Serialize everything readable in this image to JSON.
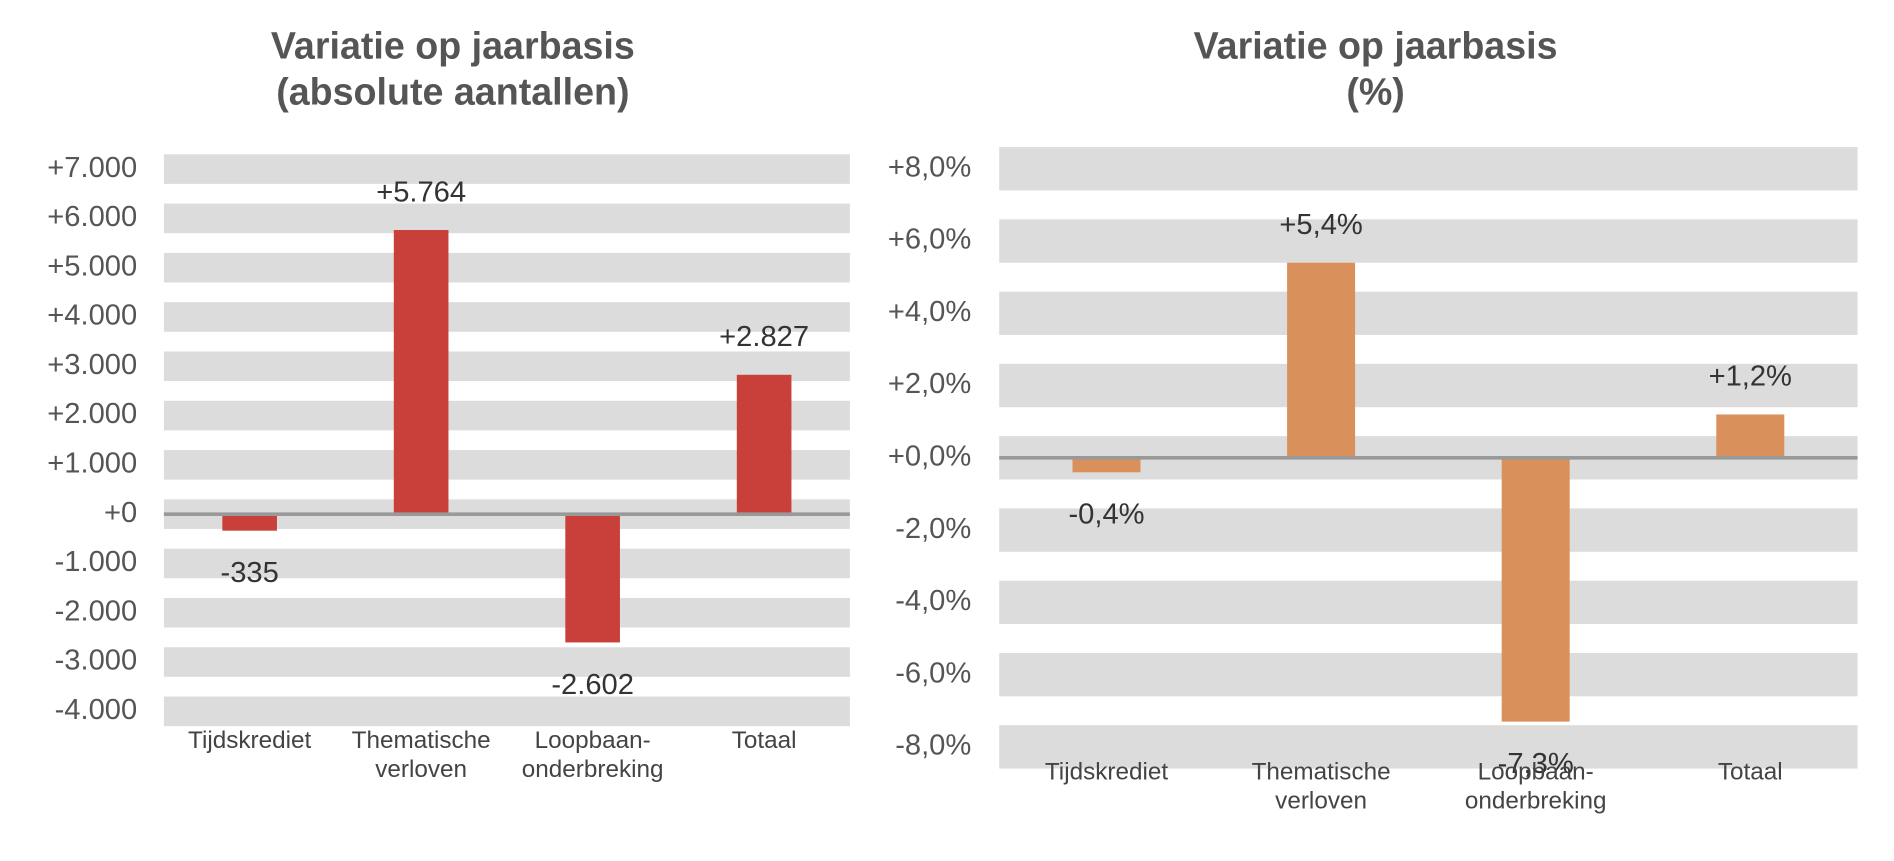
{
  "chart_data": [
    {
      "type": "bar",
      "title": "Variatie op jaarbasis",
      "subtitle": "(absolute aantallen)",
      "categories": [
        "Tijdskrediet",
        "Thematische verloven",
        "Loopbaan-onderbreking",
        "Totaal"
      ],
      "values": [
        -335,
        5764,
        -2602,
        2827
      ],
      "value_labels": [
        "-335",
        "+5.764",
        "-2.602",
        "+2.827"
      ],
      "color": "#c9403a",
      "ylim": [
        -4300,
        7300
      ],
      "yticks": [
        {
          "value": 7000,
          "label": "+7.000"
        },
        {
          "value": 6000,
          "label": "+6.000"
        },
        {
          "value": 5000,
          "label": "+5.000"
        },
        {
          "value": 4000,
          "label": "+4.000"
        },
        {
          "value": 3000,
          "label": "+3.000"
        },
        {
          "value": 2000,
          "label": "+2.000"
        },
        {
          "value": 1000,
          "label": "+1.000"
        },
        {
          "value": 0,
          "label": "+0"
        },
        {
          "value": -1000,
          "label": "-1.000"
        },
        {
          "value": -2000,
          "label": "-2.000"
        },
        {
          "value": -3000,
          "label": "-3.000"
        },
        {
          "value": -4000,
          "label": "-4.000"
        }
      ],
      "grid": true
    },
    {
      "type": "bar",
      "title": "Variatie op jaarbasis",
      "subtitle": "(%)",
      "categories": [
        "Tijdskrediet",
        "Thematische verloven",
        "Loopbaan-onderbreking",
        "Totaal"
      ],
      "values": [
        -0.4,
        5.4,
        -7.3,
        1.2
      ],
      "value_labels": [
        "-0,4%",
        "+5,4%",
        "-7,3%",
        "+1,2%"
      ],
      "color": "#d9905a",
      "ylim": [
        -8.4,
        8.4
      ],
      "yticks": [
        {
          "value": 8,
          "label": "+8,0%"
        },
        {
          "value": 6,
          "label": "+6,0%"
        },
        {
          "value": 4,
          "label": "+4,0%"
        },
        {
          "value": 2,
          "label": "+2,0%"
        },
        {
          "value": 0,
          "label": "+0,0%"
        },
        {
          "value": -2,
          "label": "-2,0%"
        },
        {
          "value": -4,
          "label": "-4,0%"
        },
        {
          "value": -6,
          "label": "-6,0%"
        },
        {
          "value": -8,
          "label": "-8,0%"
        }
      ],
      "grid": true
    }
  ]
}
